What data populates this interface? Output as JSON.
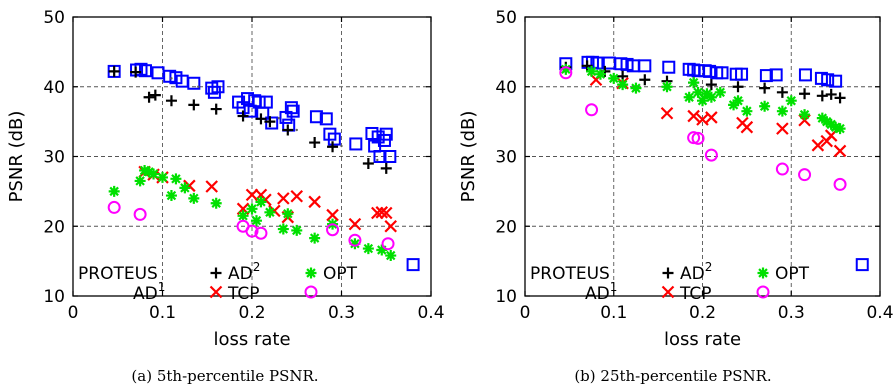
{
  "chart_data": [
    {
      "type": "scatter",
      "caption": "(a) 5th-percentile PSNR.",
      "xlabel": "loss rate",
      "ylabel": "PSNR (dB)",
      "xlim": [
        0,
        0.4
      ],
      "ylim": [
        10,
        50
      ],
      "xticks": [
        "0",
        "0.1",
        "0.2",
        "0.3",
        "0.4"
      ],
      "yticks": [
        "10",
        "20",
        "30",
        "40",
        "50"
      ],
      "grid": true,
      "legend_position": "bottom",
      "series": [
        {
          "name": "PROTEUS",
          "marker": "square",
          "color": "#0000ff",
          "points": [
            [
              0.046,
              42.2
            ],
            [
              0.071,
              42.4
            ],
            [
              0.076,
              42.5
            ],
            [
              0.081,
              42.3
            ],
            [
              0.095,
              42.0
            ],
            [
              0.108,
              41.5
            ],
            [
              0.115,
              41.3
            ],
            [
              0.122,
              40.8
            ],
            [
              0.135,
              40.5
            ],
            [
              0.155,
              39.8
            ],
            [
              0.158,
              39.2
            ],
            [
              0.162,
              40.0
            ],
            [
              0.185,
              37.8
            ],
            [
              0.19,
              37.0
            ],
            [
              0.195,
              38.3
            ],
            [
              0.198,
              36.5
            ],
            [
              0.203,
              38.0
            ],
            [
              0.208,
              37.8
            ],
            [
              0.212,
              36.2
            ],
            [
              0.216,
              37.8
            ],
            [
              0.222,
              34.8
            ],
            [
              0.238,
              35.6
            ],
            [
              0.241,
              34.5
            ],
            [
              0.244,
              37.0
            ],
            [
              0.246,
              36.5
            ],
            [
              0.272,
              35.7
            ],
            [
              0.283,
              35.4
            ],
            [
              0.287,
              33.2
            ],
            [
              0.292,
              32.5
            ],
            [
              0.316,
              31.8
            ],
            [
              0.334,
              33.3
            ],
            [
              0.337,
              31.5
            ],
            [
              0.341,
              32.8
            ],
            [
              0.343,
              30.0
            ],
            [
              0.348,
              32.3
            ],
            [
              0.35,
              33.2
            ],
            [
              0.354,
              30.0
            ],
            [
              0.38,
              14.5
            ]
          ]
        },
        {
          "name": "AD¹",
          "marker": "dot",
          "color": "#606060",
          "points": [
            [
              0.11,
              41.2
            ],
            [
              0.14,
              40.0
            ],
            [
              0.23,
              35.5
            ],
            [
              0.25,
              33.8
            ],
            [
              0.3,
              31.5
            ],
            [
              0.34,
              29.5
            ]
          ]
        },
        {
          "name": "AD²",
          "marker": "plus",
          "color": "#000000",
          "points": [
            [
              0.046,
              42.2
            ],
            [
              0.07,
              42.1
            ],
            [
              0.085,
              38.5
            ],
            [
              0.092,
              38.8
            ],
            [
              0.11,
              38.0
            ],
            [
              0.135,
              37.4
            ],
            [
              0.16,
              36.8
            ],
            [
              0.19,
              35.8
            ],
            [
              0.21,
              35.4
            ],
            [
              0.22,
              35.0
            ],
            [
              0.24,
              33.8
            ],
            [
              0.27,
              32.0
            ],
            [
              0.29,
              31.4
            ],
            [
              0.33,
              29.0
            ],
            [
              0.35,
              28.3
            ]
          ]
        },
        {
          "name": "TCP",
          "marker": "x",
          "color": "#ff0000",
          "points": [
            [
              0.08,
              27.8
            ],
            [
              0.09,
              27.4
            ],
            [
              0.1,
              27.0
            ],
            [
              0.13,
              25.8
            ],
            [
              0.155,
              25.7
            ],
            [
              0.19,
              22.5
            ],
            [
              0.2,
              24.5
            ],
            [
              0.21,
              24.5
            ],
            [
              0.215,
              23.8
            ],
            [
              0.225,
              22.2
            ],
            [
              0.235,
              24.0
            ],
            [
              0.24,
              21.3
            ],
            [
              0.25,
              24.3
            ],
            [
              0.27,
              23.5
            ],
            [
              0.29,
              21.6
            ],
            [
              0.315,
              20.3
            ],
            [
              0.34,
              21.9
            ],
            [
              0.345,
              22.0
            ],
            [
              0.35,
              21.9
            ],
            [
              0.355,
              20.0
            ]
          ]
        },
        {
          "name": "OPT",
          "marker": "asterisk",
          "color": "#00e000",
          "points": [
            [
              0.046,
              25.0
            ],
            [
              0.075,
              26.5
            ],
            [
              0.08,
              28.0
            ],
            [
              0.085,
              27.8
            ],
            [
              0.09,
              27.5
            ],
            [
              0.1,
              27.0
            ],
            [
              0.11,
              24.4
            ],
            [
              0.115,
              26.8
            ],
            [
              0.125,
              25.5
            ],
            [
              0.135,
              24.0
            ],
            [
              0.16,
              23.3
            ],
            [
              0.19,
              21.5
            ],
            [
              0.2,
              22.5
            ],
            [
              0.205,
              20.8
            ],
            [
              0.21,
              23.5
            ],
            [
              0.22,
              22.0
            ],
            [
              0.235,
              19.6
            ],
            [
              0.24,
              21.8
            ],
            [
              0.25,
              19.4
            ],
            [
              0.27,
              18.3
            ],
            [
              0.29,
              20.3
            ],
            [
              0.315,
              17.5
            ],
            [
              0.33,
              16.8
            ],
            [
              0.345,
              16.6
            ],
            [
              0.355,
              15.8
            ]
          ]
        },
        {
          "name": "AD¹ (magenta)",
          "marker": "circle",
          "color": "#ff00ff",
          "points": [
            [
              0.046,
              22.7
            ],
            [
              0.075,
              21.7
            ],
            [
              0.19,
              20.0
            ],
            [
              0.2,
              19.3
            ],
            [
              0.21,
              19.0
            ],
            [
              0.29,
              19.5
            ],
            [
              0.315,
              18.0
            ],
            [
              0.352,
              17.5
            ]
          ]
        }
      ],
      "legend_labels": {
        "proteus": "PROTEUS",
        "ad1": "AD",
        "ad1_sup": "1",
        "ad2": "AD",
        "ad2_sup": "2",
        "tcp": "TCP",
        "opt": "OPT"
      }
    },
    {
      "type": "scatter",
      "caption": "(b) 25th-percentile PSNR.",
      "xlabel": "loss rate",
      "ylabel": "PSNR (dB)",
      "xlim": [
        0,
        0.4
      ],
      "ylim": [
        10,
        50
      ],
      "xticks": [
        "0",
        "0.1",
        "0.2",
        "0.3",
        "0.4"
      ],
      "yticks": [
        "10",
        "20",
        "30",
        "40",
        "50"
      ],
      "grid": true,
      "legend_position": "bottom",
      "series": [
        {
          "name": "PROTEUS",
          "marker": "square",
          "color": "#0000ff",
          "points": [
            [
              0.046,
              43.3
            ],
            [
              0.071,
              43.5
            ],
            [
              0.076,
              43.5
            ],
            [
              0.081,
              43.4
            ],
            [
              0.095,
              43.4
            ],
            [
              0.108,
              43.3
            ],
            [
              0.115,
              43.2
            ],
            [
              0.122,
              43.0
            ],
            [
              0.135,
              43.0
            ],
            [
              0.162,
              42.8
            ],
            [
              0.185,
              42.5
            ],
            [
              0.19,
              42.4
            ],
            [
              0.195,
              42.3
            ],
            [
              0.203,
              42.3
            ],
            [
              0.208,
              42.2
            ],
            [
              0.216,
              42.0
            ],
            [
              0.222,
              42.0
            ],
            [
              0.238,
              41.8
            ],
            [
              0.244,
              41.8
            ],
            [
              0.272,
              41.6
            ],
            [
              0.283,
              41.7
            ],
            [
              0.316,
              41.7
            ],
            [
              0.334,
              41.2
            ],
            [
              0.341,
              41.0
            ],
            [
              0.35,
              40.8
            ],
            [
              0.38,
              14.5
            ]
          ]
        },
        {
          "name": "AD²",
          "marker": "plus",
          "color": "#000000",
          "points": [
            [
              0.046,
              42.8
            ],
            [
              0.07,
              43.0
            ],
            [
              0.09,
              42.2
            ],
            [
              0.11,
              41.5
            ],
            [
              0.135,
              41.0
            ],
            [
              0.16,
              40.8
            ],
            [
              0.19,
              40.6
            ],
            [
              0.21,
              40.3
            ],
            [
              0.24,
              40.0
            ],
            [
              0.27,
              39.8
            ],
            [
              0.29,
              39.2
            ],
            [
              0.315,
              39.0
            ],
            [
              0.335,
              38.7
            ],
            [
              0.345,
              38.9
            ],
            [
              0.355,
              38.4
            ]
          ]
        },
        {
          "name": "TCP",
          "marker": "x",
          "color": "#ff0000",
          "points": [
            [
              0.08,
              41.0
            ],
            [
              0.11,
              40.5
            ],
            [
              0.16,
              36.2
            ],
            [
              0.19,
              35.8
            ],
            [
              0.2,
              35.3
            ],
            [
              0.21,
              35.6
            ],
            [
              0.245,
              34.8
            ],
            [
              0.25,
              34.2
            ],
            [
              0.29,
              34.0
            ],
            [
              0.315,
              35.2
            ],
            [
              0.33,
              31.6
            ],
            [
              0.34,
              32.2
            ],
            [
              0.345,
              33.0
            ],
            [
              0.355,
              30.8
            ]
          ]
        },
        {
          "name": "OPT",
          "marker": "asterisk",
          "color": "#00e000",
          "points": [
            [
              0.046,
              42.5
            ],
            [
              0.075,
              42.2
            ],
            [
              0.085,
              41.8
            ],
            [
              0.1,
              41.2
            ],
            [
              0.11,
              40.3
            ],
            [
              0.125,
              39.8
            ],
            [
              0.16,
              40.0
            ],
            [
              0.185,
              38.5
            ],
            [
              0.19,
              40.6
            ],
            [
              0.195,
              39.2
            ],
            [
              0.2,
              38.0
            ],
            [
              0.205,
              39.0
            ],
            [
              0.21,
              38.5
            ],
            [
              0.22,
              39.2
            ],
            [
              0.235,
              37.4
            ],
            [
              0.24,
              38.0
            ],
            [
              0.25,
              36.5
            ],
            [
              0.27,
              37.2
            ],
            [
              0.29,
              36.5
            ],
            [
              0.3,
              38.0
            ],
            [
              0.315,
              36.0
            ],
            [
              0.335,
              35.5
            ],
            [
              0.34,
              35.0
            ],
            [
              0.345,
              34.6
            ],
            [
              0.35,
              34.2
            ],
            [
              0.355,
              34.0
            ]
          ]
        },
        {
          "name": "AD¹",
          "marker": "circle",
          "color": "#ff00ff",
          "points": [
            [
              0.046,
              42.0
            ],
            [
              0.075,
              36.7
            ],
            [
              0.19,
              32.7
            ],
            [
              0.195,
              32.6
            ],
            [
              0.21,
              30.2
            ],
            [
              0.29,
              28.2
            ],
            [
              0.315,
              27.4
            ],
            [
              0.355,
              26.0
            ]
          ]
        }
      ],
      "legend_labels": {
        "proteus": "PROTEUS",
        "ad1": "AD",
        "ad1_sup": "1",
        "ad2": "AD",
        "ad2_sup": "2",
        "tcp": "TCP",
        "opt": "OPT"
      }
    }
  ]
}
